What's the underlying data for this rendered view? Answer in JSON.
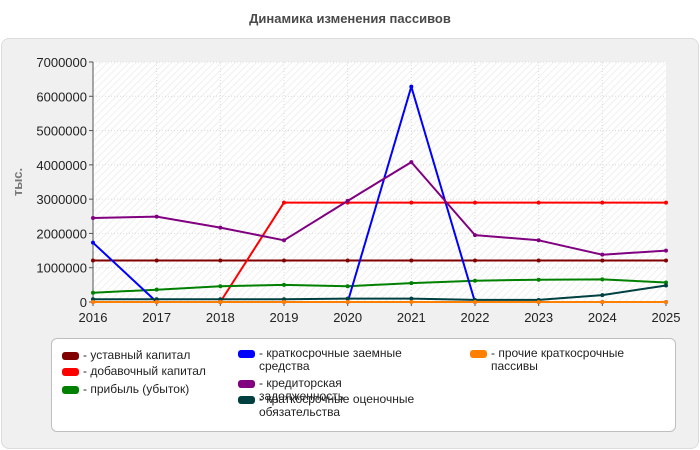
{
  "title": "Динамика изменения пассивов",
  "chart_data": {
    "type": "line",
    "title": "Динамика изменения пассивов",
    "xlabel": "",
    "ylabel": "тыс.",
    "x": [
      "2016",
      "2017",
      "2018",
      "2019",
      "2020",
      "2021",
      "2022",
      "2023",
      "2024",
      "2025"
    ],
    "ylim": [
      0,
      7000000
    ],
    "yticks": [
      "0",
      "1000000",
      "2000000",
      "3000000",
      "4000000",
      "5000000",
      "6000000",
      "7000000"
    ],
    "grid": true,
    "legend_position": "bottom",
    "series": [
      {
        "name": "уставный капитал",
        "color": "#800000",
        "values": [
          1210000,
          1210000,
          1210000,
          1210000,
          1210000,
          1210000,
          1210000,
          1210000,
          1210000,
          1210000
        ]
      },
      {
        "name": "добавочный капитал",
        "color": "#ff0000",
        "values": [
          0,
          0,
          0,
          2900000,
          2900000,
          2900000,
          2900000,
          2900000,
          2900000,
          2900000
        ]
      },
      {
        "name": "прибыль (убыток)",
        "color": "#008000",
        "values": [
          270000,
          360000,
          460000,
          500000,
          460000,
          550000,
          620000,
          650000,
          660000,
          570000
        ]
      },
      {
        "name": "краткосрочные заемные средства",
        "color": "#0000ff",
        "values": [
          1730000,
          0,
          0,
          0,
          0,
          6280000,
          0,
          0,
          0,
          0
        ]
      },
      {
        "name": "кредиторская задолженность",
        "color": "#800080",
        "values": [
          2450000,
          2490000,
          2170000,
          1800000,
          2950000,
          4080000,
          1950000,
          1800000,
          1380000,
          1500000
        ]
      },
      {
        "name": "краткосрочные оценочные обязательства",
        "color": "#004040",
        "values": [
          80000,
          80000,
          80000,
          80000,
          100000,
          100000,
          60000,
          60000,
          200000,
          480000
        ]
      },
      {
        "name": "прочие краткосрочные пассивы",
        "color": "#ff8000",
        "values": [
          0,
          0,
          0,
          0,
          0,
          0,
          0,
          0,
          0,
          0
        ]
      }
    ]
  }
}
